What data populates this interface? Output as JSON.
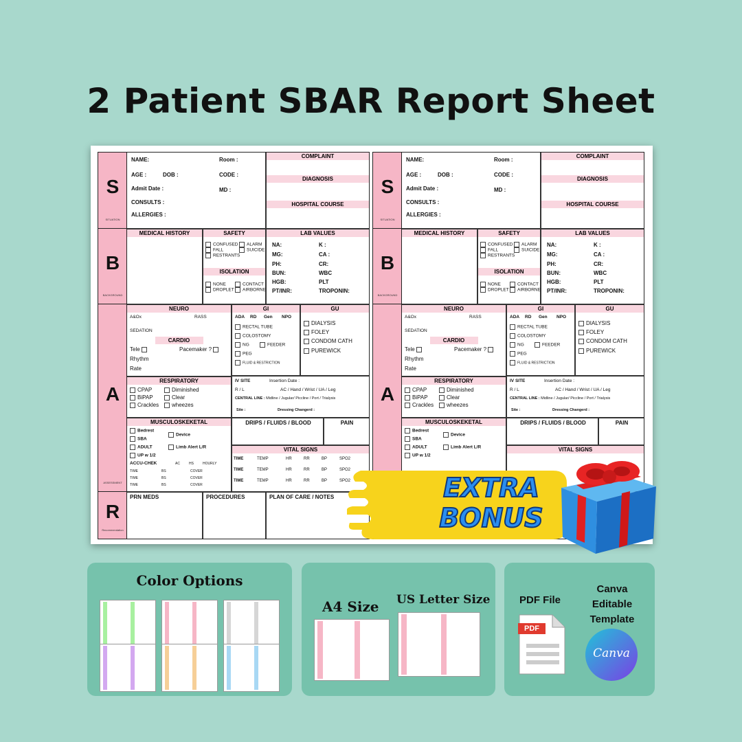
{
  "title": "2 Patient SBAR Report Sheet",
  "sbar": {
    "letters": {
      "s": "S",
      "b": "B",
      "a": "A",
      "r": "R"
    },
    "strip_labels": {
      "s": "SITUATION",
      "b": "BACKGROUND",
      "a": "ASSESSMENT",
      "r": "Recommendation"
    },
    "situation": {
      "name": "NAME:",
      "room": "Room :",
      "age": "AGE :",
      "dob": "DOB :",
      "code": "CODE :",
      "admit": "Admit Date :",
      "md": "MD :",
      "consults": "CONSULTS :",
      "allergies": "ALLERGIES :",
      "complaint": "COMPLAINT",
      "diagnosis": "DIAGNOSIS",
      "hospital_course": "HOSPITAL COURSE"
    },
    "background": {
      "medical_history": "MEDICAL HISTORY",
      "safety": "SAFETY",
      "safety_items": [
        "CONFUSED",
        "FALL",
        "RESTRANTS",
        "ALARM",
        "SUICIDE"
      ],
      "isolation": "ISOLATION",
      "isolation_items": [
        "NONE",
        "DROPLET",
        "CONTACT",
        "AIRBORNE"
      ],
      "lab_values": "LAB VALUES",
      "labs_left": [
        "NA:",
        "MG:",
        "PH:",
        "BUN:",
        "HGB:",
        "PT/INR:"
      ],
      "labs_right": [
        "K :",
        "CA :",
        "CR:",
        "WBC",
        "PLT",
        "TROPONIN:"
      ]
    },
    "assessment": {
      "neuro": "NEURO",
      "aox": "A&Ox",
      "rass": "RASS",
      "sedation": "SEDATION",
      "cardio": "CARDIO",
      "tele": "Tele",
      "pacemaker": "Pacemaker ?",
      "rhythm": "Rhythm",
      "rate": "Rate",
      "respiratory": "RESPIRATORY",
      "resp_items": [
        "CPAP",
        "BiPAP",
        "Crackles",
        "Diminished",
        "Clear",
        "wheezes"
      ],
      "musculo": "MUSCULOSKEKETAL",
      "musc_items": [
        "Bedrest",
        "SBA",
        "ADULT",
        "UP w  1/2"
      ],
      "device": "Device",
      "limb": "Limb Alert  L/R",
      "accu": "ACCU-CHEK",
      "accu_cols": [
        "AC",
        "HS",
        "HOURLY"
      ],
      "accu_row": [
        "TIME",
        "BS",
        "COVER"
      ],
      "gi": "GI",
      "gi_top": [
        "ADA",
        "RD",
        "Gen",
        "NPO"
      ],
      "gi_items": [
        "RECTAL TUBE",
        "COLOSTOMY",
        "NG",
        "FEEDER",
        "PEG",
        "FLUID & RESTRICTION"
      ],
      "gu": "GU",
      "gu_items": [
        "DIALYSIS",
        "FOLEY",
        "CONDOM CATH",
        "PUREWICK"
      ],
      "iv_site": "IV SITE",
      "insertion": "Insertion Date :",
      "rl": "R / L",
      "iv_places": "AC / Hand / Wrist / UA / Leg",
      "central": "CENTRAL LINE :",
      "central_opts": "Midline / Jugular/ Piccline / Port / Trialysis",
      "site": "Site :",
      "dressing": "Dressing Changerd :",
      "drips": "DRIPS / FLUIDS / BLOOD",
      "pain": "PAIN",
      "vitals": "VITAL SIGNS",
      "vitals_cols": [
        "TIME",
        "TEMP",
        "HR",
        "RR",
        "BP",
        "SPO2"
      ]
    },
    "recommendation": {
      "prn": "PRN MEDS",
      "procedures": "PROCEDURES",
      "plan": "PLAN OF CARE / NOTES"
    }
  },
  "bonus": {
    "line1": "EXTRA",
    "line2": "BONUS"
  },
  "cards": {
    "color_options": "Color Options",
    "a4": "A4 Size",
    "us_letter": "US Letter Size",
    "pdf_file": "PDF File",
    "pdf_badge": "PDF",
    "canva_title": "Canva Editable Template",
    "canva_logo": "Canva"
  },
  "colors": {
    "background": "#a8d8cc",
    "card": "#76c2ac",
    "pink": "#f6b6c6",
    "bonus_yellow": "#f7d31c",
    "bonus_blue": "#2a8ef0"
  }
}
